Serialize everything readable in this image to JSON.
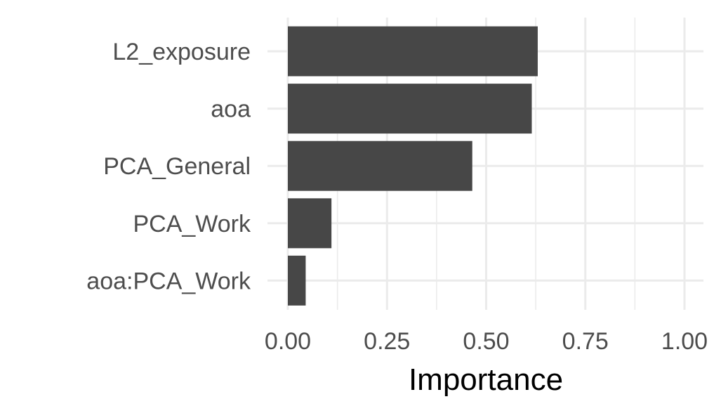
{
  "chart_data": {
    "type": "bar",
    "orientation": "horizontal",
    "title": "",
    "xlabel": "Importance",
    "ylabel": "",
    "categories": [
      "L2_exposure",
      "aoa",
      "PCA_General",
      "PCA_Work",
      "aoa:PCA_Work"
    ],
    "values": [
      0.63,
      0.615,
      0.465,
      0.11,
      0.045
    ],
    "xlim": [
      0,
      1
    ],
    "xticks": [
      0,
      0.25,
      0.5,
      0.75,
      1.0
    ],
    "xtick_labels": [
      "0.00",
      "0.25",
      "0.50",
      "0.75",
      "1.00"
    ],
    "grid": true,
    "legend": "none",
    "colors": {
      "bar": "#474747",
      "grid": "#ebebeb",
      "tick_text": "#4d4d4d",
      "axis_title": "#000000"
    }
  }
}
